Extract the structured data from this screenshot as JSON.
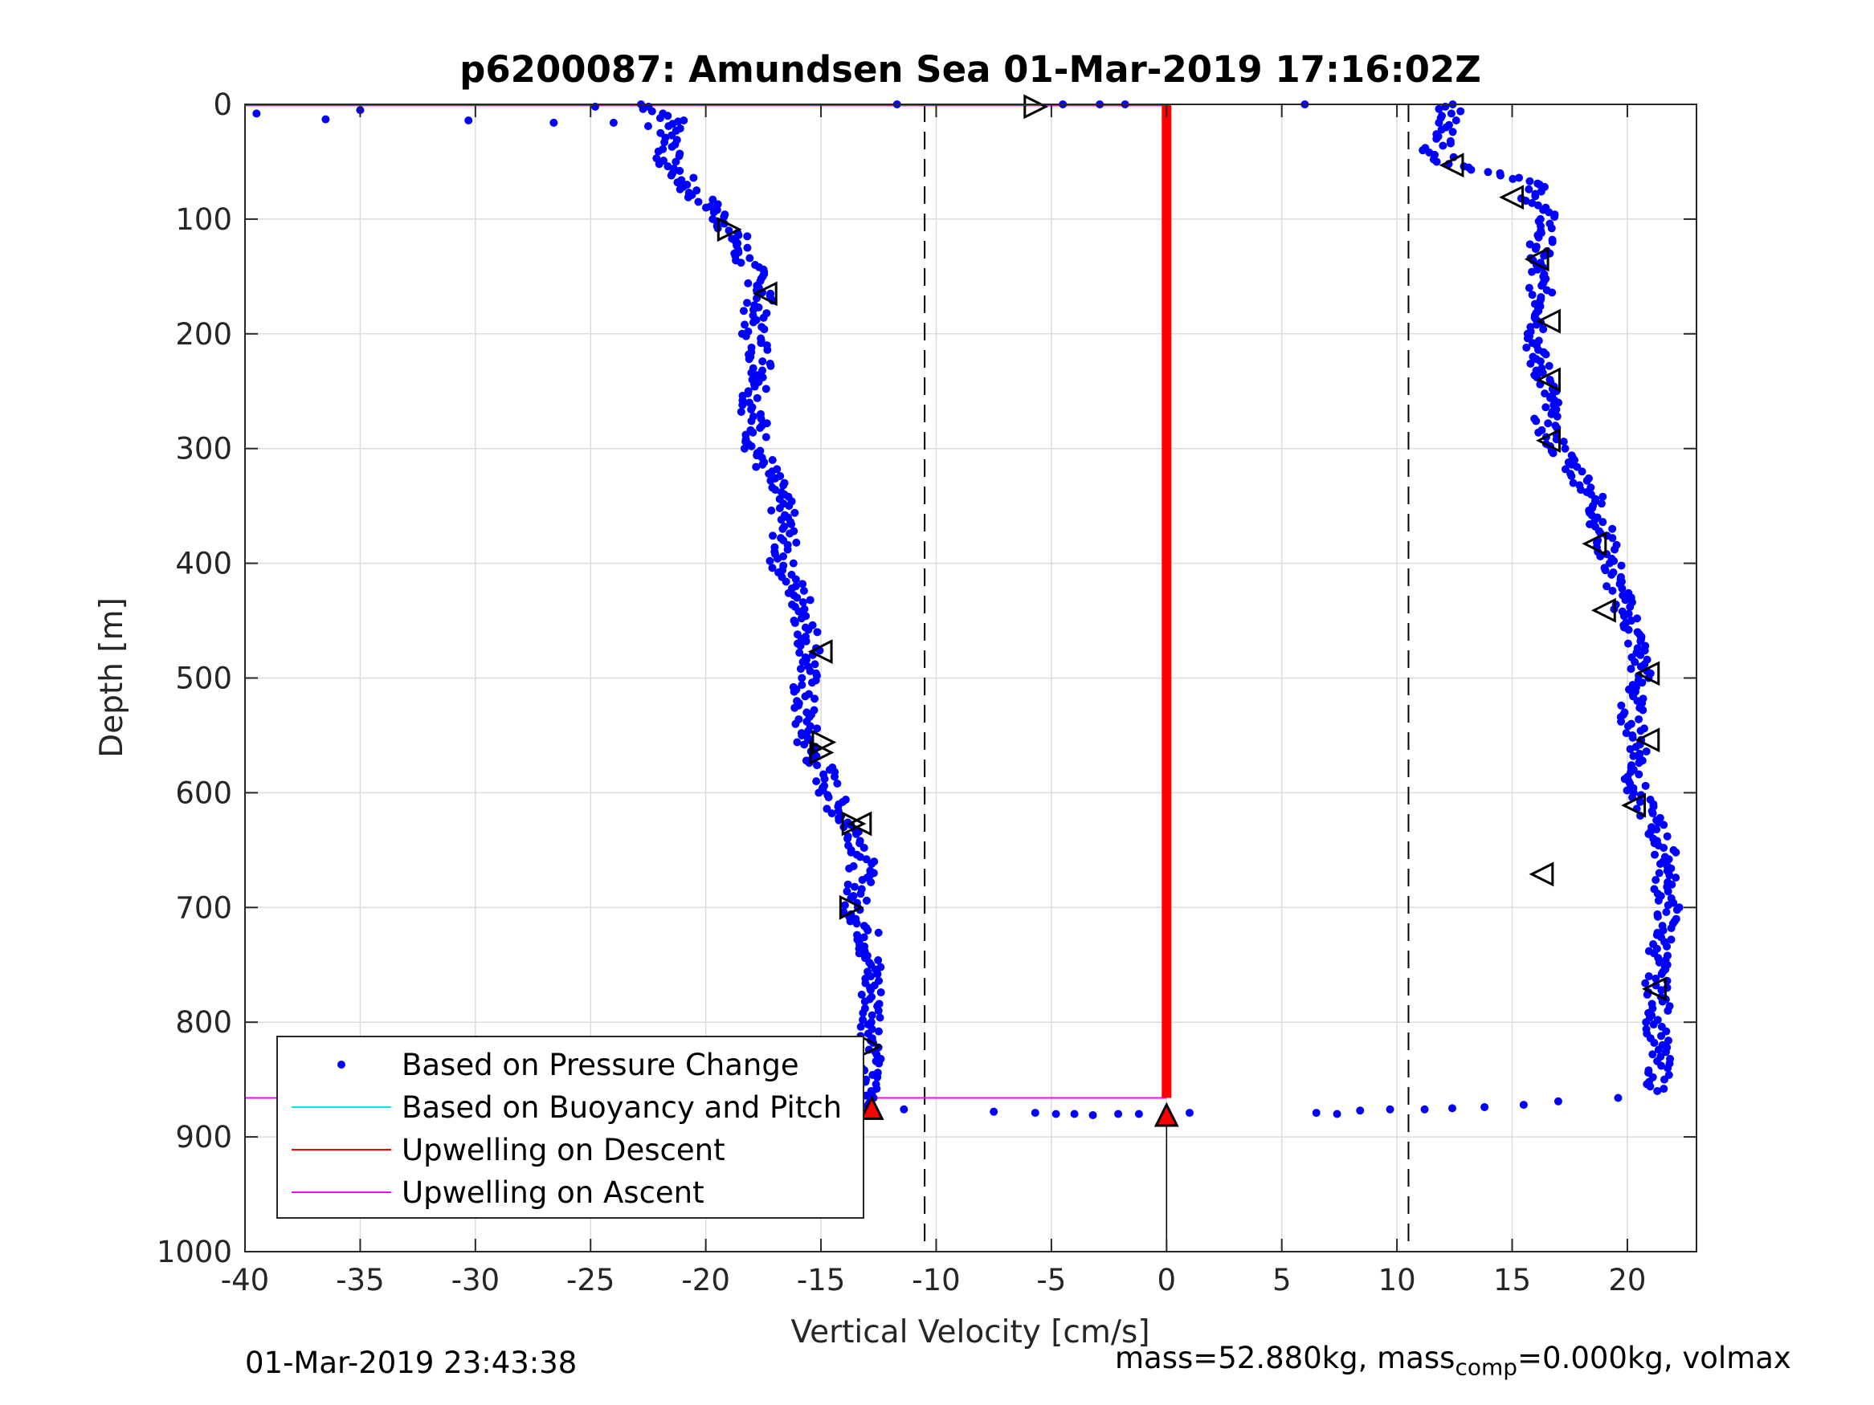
{
  "chart_data": {
    "type": "scatter",
    "title": "p6200087: Amundsen Sea 01-Mar-2019 17:16:02Z",
    "xlabel": "Vertical Velocity [cm/s]",
    "ylabel": "Depth [m]",
    "xlim": [
      -40,
      23
    ],
    "ylim": [
      0,
      1000
    ],
    "y_reversed": true,
    "grid": true,
    "xticks": [
      -40,
      -35,
      -30,
      -25,
      -20,
      -15,
      -10,
      -5,
      0,
      5,
      10,
      15,
      20
    ],
    "yticks": [
      0,
      100,
      200,
      300,
      400,
      500,
      600,
      700,
      800,
      900,
      1000
    ],
    "xtick_labels": [
      "-40",
      "-35",
      "-30",
      "-25",
      "-20",
      "-15",
      "-10",
      "-5",
      "0",
      "5",
      "10",
      "15",
      "20"
    ],
    "ytick_labels": [
      "0",
      "100",
      "200",
      "300",
      "400",
      "500",
      "600",
      "700",
      "800",
      "900",
      "1000"
    ],
    "legend_position": "bottom-left",
    "legend": [
      {
        "label": "Based on Pressure Change",
        "style": "dot",
        "color": "#0000ff"
      },
      {
        "label": "Based on Buoyancy and Pitch",
        "style": "line",
        "color": "#00e5e5"
      },
      {
        "label": "Upwelling on Descent",
        "style": "line",
        "color": "#ff0000"
      },
      {
        "label": "Upwelling on Ascent",
        "style": "line",
        "color": "#ff00ff"
      }
    ],
    "colors": {
      "pressure": "#0000ff",
      "buoyancy": "#00e5e5",
      "descent": "#ff0000",
      "ascent": "#ff00ff",
      "reference": "#000000"
    },
    "descent_profile": {
      "depth": [
        0,
        8,
        15,
        25,
        35,
        50,
        60,
        75,
        90,
        100,
        115,
        130,
        150,
        165,
        180,
        200,
        220,
        240,
        260,
        280,
        300,
        320,
        340,
        360,
        380,
        400,
        420,
        440,
        460,
        480,
        500,
        520,
        540,
        560,
        580,
        600,
        620,
        640,
        660,
        680,
        700,
        720,
        740,
        760,
        780,
        800,
        820,
        840,
        860,
        875
      ],
      "velocity": [
        -22.8,
        -21.8,
        -21.3,
        -21.5,
        -21.4,
        -21.8,
        -21.2,
        -20.7,
        -19.7,
        -19.3,
        -18.7,
        -18.5,
        -17.8,
        -17.4,
        -17.9,
        -17.9,
        -17.6,
        -17.5,
        -18.0,
        -17.8,
        -17.8,
        -17.3,
        -16.9,
        -16.6,
        -16.6,
        -16.7,
        -16.2,
        -15.7,
        -15.6,
        -15.4,
        -15.7,
        -15.8,
        -15.7,
        -15.6,
        -14.9,
        -14.6,
        -14.1,
        -13.3,
        -13.2,
        -13.3,
        -13.6,
        -13.0,
        -12.9,
        -12.8,
        -12.8,
        -12.7,
        -12.8,
        -13.0,
        -12.9,
        -12.8
      ]
    },
    "descent_surface_points": {
      "depth": [
        8,
        13,
        5,
        14,
        16,
        2,
        16,
        19
      ],
      "velocity": [
        -39.5,
        -36.5,
        -35.0,
        -30.3,
        -26.6,
        -24.8,
        -24.0,
        -22.5
      ]
    },
    "ascent_profile": {
      "depth": [
        0,
        10,
        20,
        30,
        40,
        50,
        55,
        60,
        65,
        70,
        80,
        90,
        100,
        120,
        140,
        160,
        180,
        200,
        220,
        240,
        260,
        280,
        300,
        320,
        340,
        360,
        380,
        400,
        420,
        440,
        460,
        480,
        500,
        520,
        540,
        560,
        580,
        600,
        620,
        640,
        660,
        680,
        700,
        720,
        740,
        760,
        780,
        800,
        820,
        840,
        860
      ],
      "velocity": [
        12.4,
        12.2,
        12.0,
        12.2,
        11.6,
        12.2,
        13.0,
        14.5,
        15.5,
        16.0,
        15.8,
        16.2,
        16.5,
        16.3,
        16.0,
        16.2,
        16.4,
        16.1,
        16.0,
        16.5,
        16.6,
        16.4,
        17.0,
        17.8,
        18.5,
        18.8,
        19.0,
        19.3,
        19.5,
        19.9,
        20.3,
        20.5,
        20.6,
        20.2,
        20.2,
        20.6,
        20.4,
        20.3,
        21.0,
        21.4,
        21.8,
        21.6,
        21.8,
        21.6,
        21.4,
        21.2,
        21.4,
        21.3,
        21.3,
        21.4,
        21.3
      ]
    },
    "bottom_turn_points": {
      "depth": [
        876,
        878,
        879,
        880,
        880,
        881,
        880,
        880,
        879,
        879,
        880,
        877,
        876,
        876,
        875,
        874,
        872,
        869,
        866
      ],
      "velocity": [
        -11.4,
        -7.5,
        -5.7,
        -4.8,
        -4.0,
        -3.2,
        -2.1,
        -1.2,
        1.0,
        6.5,
        7.4,
        8.4,
        9.7,
        11.2,
        12.4,
        13.8,
        15.5,
        17.0,
        19.6
      ]
    },
    "surface_points": {
      "depth": [
        0,
        0,
        0,
        0,
        0
      ],
      "velocity": [
        -11.7,
        -4.5,
        -2.9,
        -1.8,
        6.0
      ]
    },
    "descent_markers": {
      "depth": [
        2,
        109,
        565,
        556,
        627,
        700,
        821
      ],
      "velocity": [
        -5.7,
        -19.0,
        -15.0,
        -14.9,
        -13.6,
        -13.7,
        -12.9
      ]
    },
    "ascent_markers": {
      "depth": [
        53,
        81,
        135,
        165,
        189,
        240,
        293,
        383,
        441,
        477,
        496,
        554,
        611,
        627,
        671,
        771
      ],
      "velocity": [
        12.4,
        15.0,
        16.1,
        -17.4,
        16.6,
        16.6,
        16.6,
        18.6,
        19.0,
        -15.0,
        20.9,
        20.9,
        20.3,
        -13.3,
        16.3,
        21.2
      ]
    },
    "bottom_marker": {
      "depth": 881,
      "velocity": 0.0
    },
    "bottom_red_marker": {
      "depth": 875,
      "velocity": -12.8
    },
    "upwelling_descent": {
      "velocity": 0.0,
      "depth_from": 0,
      "depth_to": 866
    },
    "ascent_lines": [
      {
        "depth": 1
      },
      {
        "depth": 866
      }
    ],
    "dashed_lines": [
      -10.5,
      10.5
    ],
    "bottom_vertical": {
      "velocity": 0.0,
      "depth_from": 881,
      "depth_to": 1000
    }
  },
  "footer": {
    "left": "01-Mar-2019 23:43:38",
    "right_prefix": "mass=52.880kg, mass",
    "right_sub": "comp",
    "right_suffix": "=0.000kg, volmax"
  }
}
